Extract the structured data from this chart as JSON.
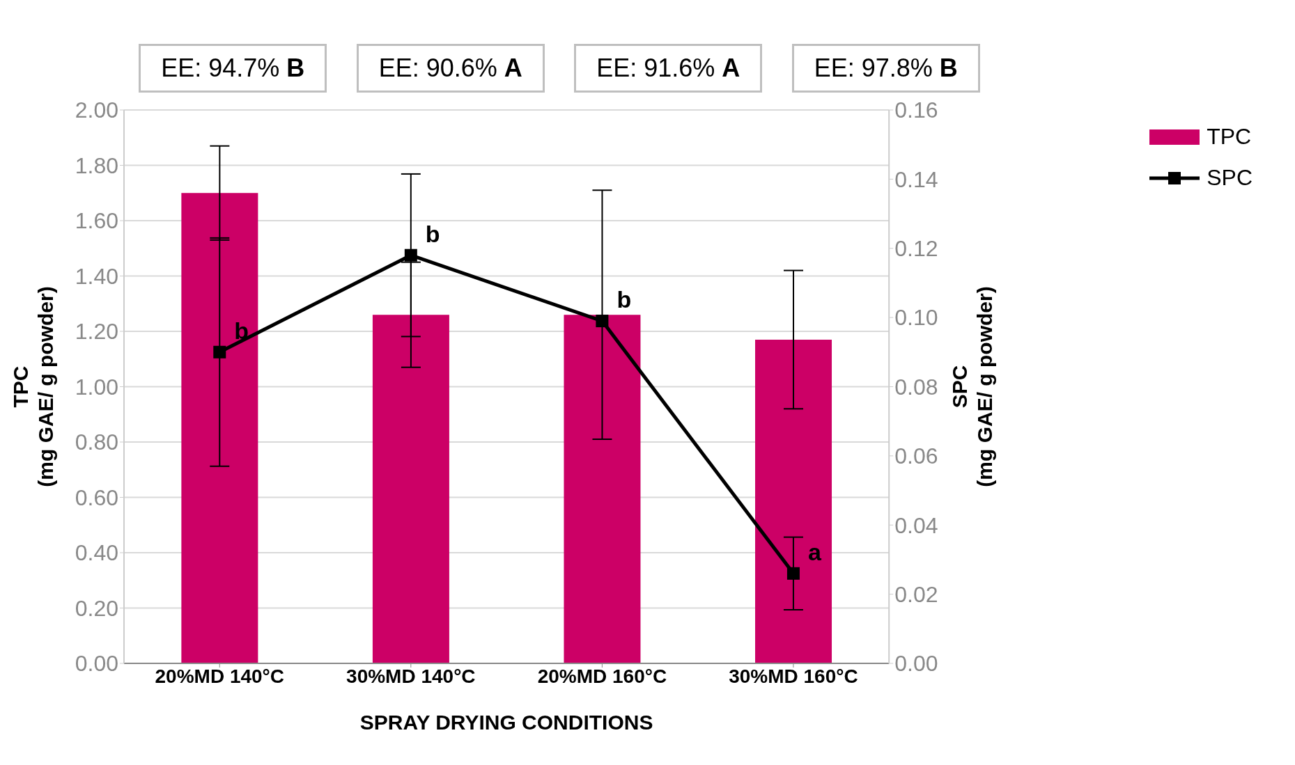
{
  "chart_data": {
    "type": "bar",
    "categories": [
      "20%MD 140°C",
      "30%MD 140°C",
      "20%MD 160°C",
      "30%MD 160°C"
    ],
    "xlabel": "SPRAY DRYING CONDITIONS",
    "ylabel": "TPC (mg GAE/ g powder)",
    "y2label": "SPC (mg GAE/ g powder)",
    "series": [
      {
        "name": "TPC",
        "color": "#cc0066",
        "values": [
          1.7,
          1.26,
          1.26,
          1.17
        ],
        "errors": [
          0.17,
          0.19,
          0.45,
          0.25
        ]
      },
      {
        "name": "SPC",
        "type": "line",
        "axis": "y2",
        "color": "#000000",
        "values": [
          0.09,
          0.118,
          0.099,
          0.026
        ],
        "errors": [
          0.033,
          0.0235,
          null,
          0.0105
        ],
        "marker": "square",
        "line_style": "solid"
      }
    ],
    "ylim": [
      0,
      2
    ],
    "yticks": [
      {
        "value": 0,
        "label": "0.00"
      },
      {
        "value": 0.2,
        "label": "0.20"
      },
      {
        "value": 0.4,
        "label": "0.40"
      },
      {
        "value": 0.6,
        "label": "0.60"
      },
      {
        "value": 0.8,
        "label": "0.80"
      },
      {
        "value": 1,
        "label": "1.00"
      },
      {
        "value": 1.2,
        "label": "1.20"
      },
      {
        "value": 1.4,
        "label": "1.40"
      },
      {
        "value": 1.6,
        "label": "1.60"
      },
      {
        "value": 1.8,
        "label": "1.80"
      },
      {
        "value": 2,
        "label": "2.00"
      }
    ],
    "y2lim": [
      0,
      0.16
    ],
    "y2ticks": [
      {
        "value": 0,
        "label": "0.00"
      },
      {
        "value": 0.02,
        "label": "0.02"
      },
      {
        "value": 0.04,
        "label": "0.04"
      },
      {
        "value": 0.06,
        "label": "0.06"
      },
      {
        "value": 0.08,
        "label": "0.08"
      },
      {
        "value": 0.1,
        "label": "0.10"
      },
      {
        "value": 0.12,
        "label": "0.12"
      },
      {
        "value": 0.14,
        "label": "0.14"
      },
      {
        "value": 0.16,
        "label": "0.16"
      }
    ],
    "annotations": [
      "EE: 94.7% B",
      "EE: 90.6% A",
      "EE: 91.6% A",
      "EE: 97.8% B",
      "b",
      "b",
      "b",
      "a"
    ],
    "grid": "y",
    "legend": "top right"
  }
}
